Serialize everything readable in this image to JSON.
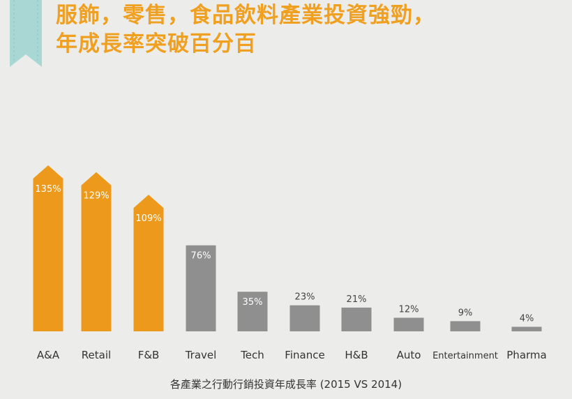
{
  "header": {
    "title_line1": "服飾，零售，食品飲料產業投資強勁，",
    "title_line2": "年成長率突破百分百"
  },
  "colors": {
    "highlight": "#ed9a1c",
    "base": "#8f8f8f",
    "title": "#f0a020",
    "ribbon": "#a9d8d4"
  },
  "chart_data": {
    "type": "bar",
    "categories": [
      "A&A",
      "Retail",
      "F&B",
      "Travel",
      "Tech",
      "Finance",
      "H&B",
      "Auto",
      "Entertainment",
      "Pharma"
    ],
    "values": [
      135,
      129,
      109,
      76,
      35,
      23,
      21,
      12,
      9,
      4
    ],
    "data_labels": [
      "135%",
      "129%",
      "109%",
      "76%",
      "35%",
      "23%",
      "21%",
      "12%",
      "9%",
      "4%"
    ],
    "highlighted": [
      "A&A",
      "Retail",
      "F&B"
    ],
    "xlabel": "各產業之行動行銷投資年成長率 (2015 VS 2014)",
    "ylabel": "",
    "unit": "%",
    "ylim": [
      0,
      135
    ],
    "grid": false,
    "legend": "none"
  }
}
